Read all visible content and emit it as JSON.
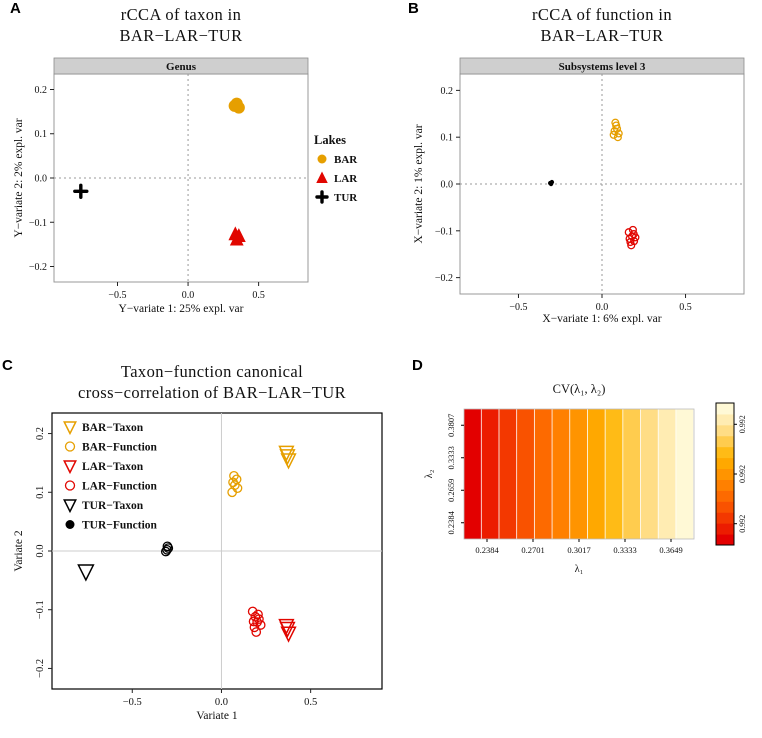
{
  "figure": {
    "bg": "#ffffff"
  },
  "colors": {
    "bar": "#E69F00",
    "lar": "#E10600",
    "tur": "#000000",
    "strip_bg": "#CFCFCF"
  },
  "chart_data": [
    {
      "id": "A",
      "panel_label": "A",
      "type": "scatter",
      "title_lines": [
        "rCCA of taxon in",
        "BAR−LAR−TUR"
      ],
      "strip_label": "Genus",
      "xlabel": "Y−variate 1: 25% expl. var",
      "ylabel": "Y−variate 2: 2% expl. var",
      "xlim": [
        -0.95,
        0.85
      ],
      "ylim": [
        -0.235,
        0.235
      ],
      "xticks": [
        -0.5,
        0,
        0.5
      ],
      "yticks": [
        -0.2,
        -0.1,
        0,
        0.1,
        0.2
      ],
      "zero_lines": "dotted",
      "border": "#999999",
      "legend": {
        "title": "Lakes",
        "entries": [
          {
            "label": "BAR",
            "marker": "circle",
            "filled": true,
            "color": "#E69F00"
          },
          {
            "label": "LAR",
            "marker": "triangle-up",
            "filled": true,
            "color": "#E10600"
          },
          {
            "label": "TUR",
            "marker": "plus",
            "filled": true,
            "color": "#000000"
          }
        ]
      },
      "series": [
        {
          "name": "BAR",
          "marker": "circle",
          "filled": true,
          "color": "#E69F00",
          "size": 6,
          "points": [
            [
              0.33,
              0.163
            ],
            [
              0.36,
              0.159
            ],
            [
              0.345,
              0.168
            ]
          ]
        },
        {
          "name": "LAR",
          "marker": "triangle-up",
          "filled": true,
          "color": "#E10600",
          "size": 6,
          "points": [
            [
              0.335,
              -0.127
            ],
            [
              0.36,
              -0.131
            ],
            [
              0.345,
              -0.139
            ]
          ]
        },
        {
          "name": "TUR",
          "marker": "plus",
          "filled": true,
          "color": "#000000",
          "size": 6,
          "points": [
            [
              -0.76,
              -0.03
            ]
          ]
        }
      ]
    },
    {
      "id": "B",
      "panel_label": "B",
      "type": "scatter",
      "title_lines": [
        "rCCA of function in",
        "BAR−LAR−TUR"
      ],
      "strip_label": "Subsystems level 3",
      "xlabel": "X−variate 1: 6% expl. var",
      "ylabel": "X−variate 2: 1% expl. var",
      "xlim": [
        -0.85,
        0.85
      ],
      "ylim": [
        -0.235,
        0.235
      ],
      "xticks": [
        -0.5,
        0,
        0.5
      ],
      "yticks": [
        -0.2,
        -0.1,
        0,
        0.1,
        0.2
      ],
      "zero_lines": "dotted",
      "border": "#999999",
      "series": [
        {
          "name": "BAR",
          "marker": "circle",
          "filled": false,
          "color": "#E69F00",
          "size": 3.4,
          "points": [
            [
              0.07,
              0.105
            ],
            [
              0.09,
              0.118
            ],
            [
              0.1,
              0.108
            ],
            [
              0.085,
              0.125
            ],
            [
              0.075,
              0.113
            ],
            [
              0.095,
              0.1
            ],
            [
              0.08,
              0.131
            ]
          ]
        },
        {
          "name": "LAR",
          "marker": "circle",
          "filled": false,
          "color": "#E10600",
          "size": 3.4,
          "points": [
            [
              0.16,
              -0.103
            ],
            [
              0.18,
              -0.112
            ],
            [
              0.17,
              -0.124
            ],
            [
              0.19,
              -0.107
            ],
            [
              0.175,
              -0.131
            ],
            [
              0.165,
              -0.117
            ],
            [
              0.192,
              -0.122
            ],
            [
              0.2,
              -0.114
            ],
            [
              0.185,
              -0.098
            ]
          ]
        },
        {
          "name": "TUR",
          "marker": "circle",
          "filled": true,
          "color": "#000000",
          "size": 2.2,
          "points": [
            [
              -0.31,
              0.002
            ],
            [
              -0.3,
              0.004
            ],
            [
              -0.305,
              0
            ]
          ]
        }
      ]
    },
    {
      "id": "C",
      "panel_label": "C",
      "type": "scatter",
      "title_lines": [
        "Taxon−function canonical",
        "cross−correlation of BAR−LAR−TUR"
      ],
      "xlabel": "Variate 1",
      "ylabel": "Variate 2",
      "xlim": [
        -0.95,
        0.9
      ],
      "ylim": [
        -0.235,
        0.235
      ],
      "xticks": [
        -0.5,
        0,
        0.5
      ],
      "yticks": [
        -0.2,
        -0.1,
        0,
        0.1,
        0.2
      ],
      "zero_lines": "solid",
      "border": "#000000",
      "legend": {
        "entries": [
          {
            "label": "BAR−Taxon",
            "marker": "triangle-down",
            "filled": false,
            "color": "#E69F00"
          },
          {
            "label": "BAR−Function",
            "marker": "circle",
            "filled": false,
            "color": "#E69F00"
          },
          {
            "label": "LAR−Taxon",
            "marker": "triangle-down",
            "filled": false,
            "color": "#E10600"
          },
          {
            "label": "LAR−Function",
            "marker": "circle",
            "filled": false,
            "color": "#E10600"
          },
          {
            "label": "TUR−Taxon",
            "marker": "triangle-down",
            "filled": false,
            "color": "#000000"
          },
          {
            "label": "TUR−Function",
            "marker": "circle",
            "filled": true,
            "color": "#000000"
          }
        ]
      },
      "series": [
        {
          "name": "BAR−Taxon",
          "marker": "triangle-down",
          "filled": false,
          "color": "#E69F00",
          "size": 6,
          "points": [
            [
              0.37,
              0.162
            ],
            [
              0.376,
              0.155
            ],
            [
              0.364,
              0.168
            ]
          ]
        },
        {
          "name": "BAR−Function",
          "marker": "circle",
          "filled": false,
          "color": "#E69F00",
          "size": 4.2,
          "points": [
            [
              0.06,
              0.1
            ],
            [
              0.075,
              0.112
            ],
            [
              0.085,
              0.122
            ],
            [
              0.07,
              0.128
            ],
            [
              0.09,
              0.107
            ],
            [
              0.065,
              0.117
            ]
          ]
        },
        {
          "name": "LAR−Taxon",
          "marker": "triangle-down",
          "filled": false,
          "color": "#E10600",
          "size": 6,
          "points": [
            [
              0.37,
              -0.132
            ],
            [
              0.376,
              -0.14
            ],
            [
              0.364,
              -0.127
            ]
          ]
        },
        {
          "name": "LAR−Function",
          "marker": "circle",
          "filled": false,
          "color": "#E10600",
          "size": 4.2,
          "points": [
            [
              0.175,
              -0.103
            ],
            [
              0.19,
              -0.112
            ],
            [
              0.2,
              -0.121
            ],
            [
              0.185,
              -0.13
            ],
            [
              0.21,
              -0.116
            ],
            [
              0.195,
              -0.138
            ],
            [
              0.18,
              -0.12
            ],
            [
              0.205,
              -0.108
            ],
            [
              0.22,
              -0.126
            ]
          ]
        },
        {
          "name": "TUR−Taxon",
          "marker": "triangle-down",
          "filled": false,
          "color": "#000000",
          "size": 6.5,
          "points": [
            [
              -0.76,
              -0.035
            ]
          ]
        },
        {
          "name": "TUR−Function",
          "marker": "circle",
          "filled": false,
          "color": "#000000",
          "size": 4.2,
          "points": [
            [
              -0.305,
              0.002
            ],
            [
              -0.298,
              0.005
            ],
            [
              -0.312,
              -0.001
            ],
            [
              -0.303,
              0.008
            ]
          ]
        }
      ]
    },
    {
      "id": "D",
      "panel_label": "D",
      "type": "heatmap",
      "title": "CV(λ₁, λ₂)",
      "xlabel": "λ₁",
      "ylabel": "λ₂",
      "xticks": [
        "0.2384",
        "0.2701",
        "0.3017",
        "0.3333",
        "0.3649"
      ],
      "yticks": [
        "0.2384",
        "0.2659",
        "0.3333",
        "0.3807"
      ],
      "col_colors": [
        "#E30000",
        "#EC1C00",
        "#F33800",
        "#F95200",
        "#FD6A00",
        "#FF8000",
        "#FF9400",
        "#FFA800",
        "#FFBB16",
        "#FFCC4E",
        "#FFDD85",
        "#FFECB2",
        "#FFF9D6"
      ],
      "colorbar_ticks": [
        "0.992",
        "0.992",
        "0.992"
      ]
    }
  ]
}
